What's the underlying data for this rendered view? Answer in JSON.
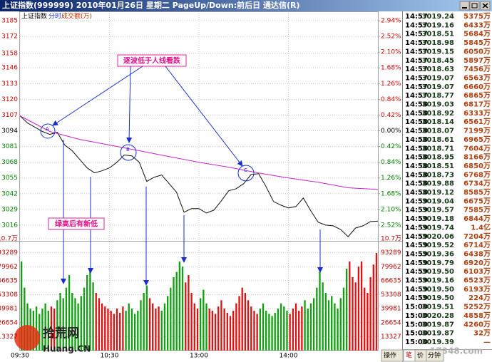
{
  "window": {
    "title": "上证指数(999999) 2010年01月26日 星期二 PageUp/Down:前后日 通达信(R)"
  },
  "chart_data": [
    {
      "type": "line",
      "header": [
        "上证指数",
        "分时",
        "成交额(万)"
      ],
      "xlim": [
        0,
        240
      ],
      "ylim": [
        3003,
        3191.5
      ],
      "yticks": [
        3185,
        3172,
        3158,
        3146,
        3133,
        3120,
        3107,
        3094,
        3081,
        3068,
        3055,
        3042,
        3029,
        3016
      ],
      "y2lim": [
        -2.94,
        3.15
      ],
      "y2ticks": [
        {
          "value": 2.94,
          "label": "2.94%"
        },
        {
          "value": 2.52,
          "label": "2.52%"
        },
        {
          "value": 2.1,
          "label": "2.10%"
        },
        {
          "value": 1.68,
          "label": "1.68%"
        },
        {
          "value": 1.26,
          "label": "1.26%"
        },
        {
          "value": 0.84,
          "label": "0.84%"
        },
        {
          "value": 0.42,
          "label": "0.42%"
        },
        {
          "value": 0,
          "label": "0.00%"
        },
        {
          "value": -0.42,
          "label": "0.42%"
        },
        {
          "value": -0.84,
          "label": "0.84%"
        },
        {
          "value": -1.26,
          "label": "1.26%"
        },
        {
          "value": -1.68,
          "label": "1.68%"
        },
        {
          "value": -2.1,
          "label": "2.10%"
        },
        {
          "value": -2.52,
          "label": "2.52%"
        }
      ],
      "grid": true,
      "up_color": "#d00000",
      "down_color": "#008000",
      "flat_color": "#000000",
      "series": [
        {
          "color": "#101010",
          "x": [
            0,
            5,
            10,
            15,
            20,
            25,
            30,
            35,
            40,
            45,
            50,
            55,
            60,
            65,
            70,
            75,
            80,
            85,
            90,
            95,
            100,
            105,
            110,
            115,
            120,
            125,
            130,
            135,
            140,
            145,
            150,
            155,
            160,
            165,
            170,
            175,
            180,
            185,
            190,
            195,
            200,
            205,
            210,
            215,
            220,
            225,
            230,
            235,
            240
          ],
          "values": [
            3106.4,
            3100.5,
            3097.0,
            3093.4,
            3091.0,
            3092.8,
            3082.2,
            3077.5,
            3070.4,
            3063.3,
            3059.2,
            3060.9,
            3063.3,
            3068.0,
            3074.0,
            3073.3,
            3068.0,
            3052.1,
            3055.6,
            3057.4,
            3050.3,
            3043.2,
            3026.7,
            3029.6,
            3029.6,
            3026.0,
            3028.4,
            3036.1,
            3044.4,
            3046.1,
            3050.3,
            3057.9,
            3058.5,
            3047.9,
            3035.5,
            3032.5,
            3030.2,
            3031.4,
            3038.4,
            3027.8,
            3018.4,
            3016.0,
            3015.4,
            3012.4,
            3006.5,
            3013.6,
            3015.4,
            3018.9,
            3019.4
          ]
        },
        {
          "color": "#cc22cc",
          "x": [
            0,
            20,
            40,
            60,
            80,
            100,
            120,
            140,
            160,
            180,
            200,
            220,
            240
          ],
          "values": [
            3106.4,
            3093.4,
            3086.9,
            3082.2,
            3077.5,
            3072.7,
            3068.0,
            3063.9,
            3059.1,
            3055.0,
            3051.4,
            3046.9,
            3045.5
          ]
        }
      ],
      "annotations": {
        "texts": [
          "逐波低于人线看跌",
          "绿高后有新低"
        ],
        "points": [
          "A",
          "B",
          "C"
        ]
      }
    },
    {
      "type": "bar",
      "xlim": [
        0,
        240
      ],
      "xticks": [
        {
          "value": 0,
          "label": "09:30"
        },
        {
          "value": 60,
          "label": "10:30"
        },
        {
          "value": 120,
          "label": "13:00"
        },
        {
          "value": 180,
          "label": "14:00"
        }
      ],
      "ylim": [
        0,
        106616
      ],
      "yticks": [
        13327,
        26654,
        39981,
        53308,
        66635,
        79962,
        93289,
        {
          "value": 106616,
          "label": "10.7万"
        }
      ],
      "label_color": "#c00000",
      "up_color": "#e01010",
      "down_color": "#10a010",
      "x": [
        0,
        2,
        4,
        6,
        8,
        10,
        12,
        14,
        16,
        18,
        20,
        22,
        24,
        26,
        28,
        30,
        32,
        34,
        36,
        38,
        40,
        42,
        44,
        46,
        48,
        50,
        52,
        54,
        56,
        58,
        60,
        62,
        64,
        66,
        68,
        70,
        72,
        74,
        76,
        78,
        80,
        82,
        84,
        86,
        88,
        90,
        92,
        94,
        96,
        98,
        100,
        102,
        104,
        106,
        108,
        110,
        112,
        114,
        116,
        118,
        120,
        122,
        124,
        126,
        128,
        130,
        132,
        134,
        136,
        138,
        140,
        142,
        144,
        146,
        148,
        150,
        152,
        154,
        156,
        158,
        160,
        162,
        164,
        166,
        168,
        170,
        172,
        174,
        176,
        178,
        180,
        182,
        184,
        186,
        188,
        190,
        192,
        194,
        196,
        198,
        200,
        202,
        204,
        206,
        208,
        210,
        212,
        214,
        216,
        218,
        220,
        222,
        224,
        226,
        228,
        230,
        232,
        234,
        236,
        238
      ],
      "values": [
        85000,
        60000,
        45000,
        40000,
        38000,
        42000,
        35000,
        40000,
        45000,
        38000,
        42000,
        40000,
        48000,
        55000,
        50000,
        60000,
        72000,
        55000,
        50000,
        45000,
        52000,
        60000,
        72000,
        78000,
        65000,
        55000,
        50000,
        45000,
        42000,
        40000,
        38000,
        35000,
        40000,
        36000,
        42000,
        38000,
        45000,
        40000,
        35000,
        38000,
        48000,
        55000,
        62000,
        50000,
        45000,
        40000,
        42000,
        38000,
        45000,
        52000,
        60000,
        70000,
        75000,
        85000,
        80000,
        65000,
        72000,
        55000,
        45000,
        40000,
        50000,
        58000,
        45000,
        40000,
        38000,
        35000,
        42000,
        48000,
        40000,
        36000,
        33000,
        38000,
        45000,
        52000,
        60000,
        55000,
        48000,
        42000,
        38000,
        35000,
        40000,
        45000,
        38000,
        35000,
        33000,
        36000,
        40000,
        45000,
        42000,
        38000,
        35000,
        40000,
        45000,
        38000,
        42000,
        48000,
        40000,
        45000,
        50000,
        60000,
        75000,
        65000,
        55000,
        48000,
        52000,
        45000,
        40000,
        50000,
        60000,
        78000,
        85000,
        70000,
        65000,
        80000,
        85000,
        60000,
        55000,
        70000,
        82000,
        93000
      ]
    }
  ],
  "tick_table": {
    "rows": [
      [
        "14:57",
        "3019.24",
        "5375万"
      ],
      [
        "14:57",
        "3019.16",
        "6433万"
      ],
      [
        "14:57",
        "3018.51",
        "5684万"
      ],
      [
        "14:57",
        "3018.98",
        "5845万"
      ],
      [
        "14:57",
        "3019.15",
        "6050万"
      ],
      [
        "14:57",
        "3018.45",
        "5897万"
      ],
      [
        "14:57",
        "3018.63",
        "7456万"
      ],
      [
        "14:57",
        "3019.07",
        "6563万"
      ],
      [
        "14:57",
        "3019.07",
        "6660万"
      ],
      [
        "14:57",
        "3018.77",
        "6865万"
      ],
      [
        "14:58",
        "3019.03",
        "6817万"
      ],
      [
        "14:58",
        "3018.92",
        "6333万"
      ],
      [
        "14:58",
        "3018.14",
        "6561万"
      ],
      [
        "14:58",
        "3018.07",
        "7199万"
      ],
      [
        "14:58",
        "3018.61",
        "6965万"
      ],
      [
        "14:58",
        "3018.71",
        "7604万"
      ],
      [
        "14:58",
        "3018.95",
        "8166万"
      ],
      [
        "14:58",
        "3018.51",
        "6850万"
      ],
      [
        "14:58",
        "3018.73",
        "6768万"
      ],
      [
        "14:58",
        "3019.88",
        "6734万"
      ],
      [
        "14:58",
        "3019.12",
        "8585万"
      ],
      [
        "14:59",
        "3019.04",
        "6675万"
      ],
      [
        "14:59",
        "3019.57",
        "7585万"
      ],
      [
        "14:59",
        "3019.18",
        "6844万"
      ],
      [
        "14:59",
        "3019.74",
        "1.4亿"
      ],
      [
        "14:59",
        "3020.06",
        "7204万"
      ],
      [
        "14:59",
        "3019.52",
        "6714万"
      ],
      [
        "14:59",
        "3019.36",
        "6438万"
      ],
      [
        "14:59",
        "3019.79",
        "6920万"
      ],
      [
        "14:59",
        "3019.50",
        "6103万"
      ],
      [
        "14:59",
        "3019.16",
        "6523万"
      ],
      [
        "14:59",
        "3019.50",
        "6193万"
      ],
      [
        "14:59",
        "3019.50",
        "224万"
      ],
      [
        "15:00",
        "3019.51",
        "5252万"
      ],
      [
        "15:00",
        "3020.28",
        "4858万"
      ],
      [
        "15:00",
        "3019.87",
        "4260万"
      ],
      [
        "15:00",
        "3019.87",
        "32万"
      ],
      [
        "15:00",
        "3019.39",
        "—"
      ]
    ]
  },
  "tabs": [
    "操作",
    "笔",
    "价",
    "分钟"
  ],
  "watermarks": [
    "拾荒网",
    "Huang.CN",
    "17348.com"
  ]
}
